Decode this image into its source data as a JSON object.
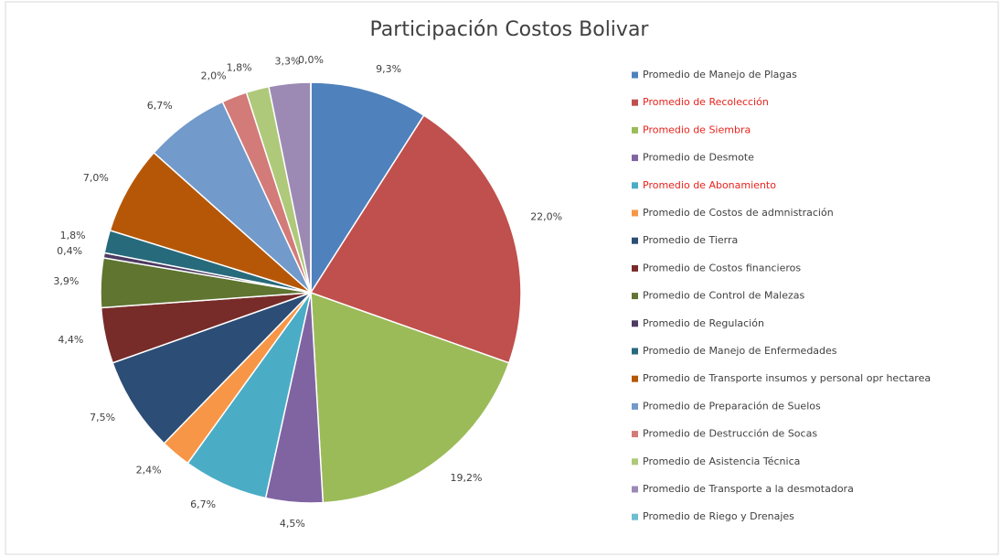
{
  "chart_data": {
    "type": "pie",
    "title": "Participación Costos Bolivar",
    "categories": [
      "Promedio de Manejo de Plagas",
      "Promedio de Recolección",
      "Promedio de Siembra",
      "Promedio de Desmote",
      "Promedio de Abonamiento",
      "Promedio de Costos de admnistración",
      "Promedio de Tierra",
      "Promedio de Costos financieros",
      "Promedio de Control de Malezas",
      "Promedio de Regulación",
      "Promedio de Manejo de Enfermedades",
      "Promedio de Transporte insumos y personal opr hectarea",
      "Promedio de Preparación de Suelos",
      "Promedio de Destrucción de Socas",
      "Promedio de Asistencia Técnica",
      "Promedio de Transporte a la desmotadora",
      "Promedio de Riego y Drenajes"
    ],
    "values": [
      9.3,
      22.0,
      19.2,
      4.5,
      6.7,
      2.4,
      7.5,
      4.4,
      3.9,
      0.4,
      1.8,
      7.0,
      6.7,
      2.0,
      1.8,
      3.3,
      0.0
    ],
    "value_labels": [
      "9,3%",
      "22,0%",
      "19,2%",
      "4,5%",
      "6,7%",
      "2,4%",
      "7,5%",
      "4,4%",
      "3,9%",
      "0,4%",
      "1,8%",
      "7,0%",
      "6,7%",
      "2,0%",
      "1,8%",
      "3,3%",
      "0,0%"
    ],
    "colors": [
      "#4f81bd",
      "#c0504d",
      "#9bbb59",
      "#8064a2",
      "#4bacc6",
      "#f79646",
      "#2c4d75",
      "#772c2a",
      "#5f7530",
      "#4d3b62",
      "#276a7c",
      "#b65708",
      "#729aca",
      "#d37b79",
      "#afc97a",
      "#9c8ab4",
      "#6fbdd1"
    ],
    "legend": "right"
  }
}
